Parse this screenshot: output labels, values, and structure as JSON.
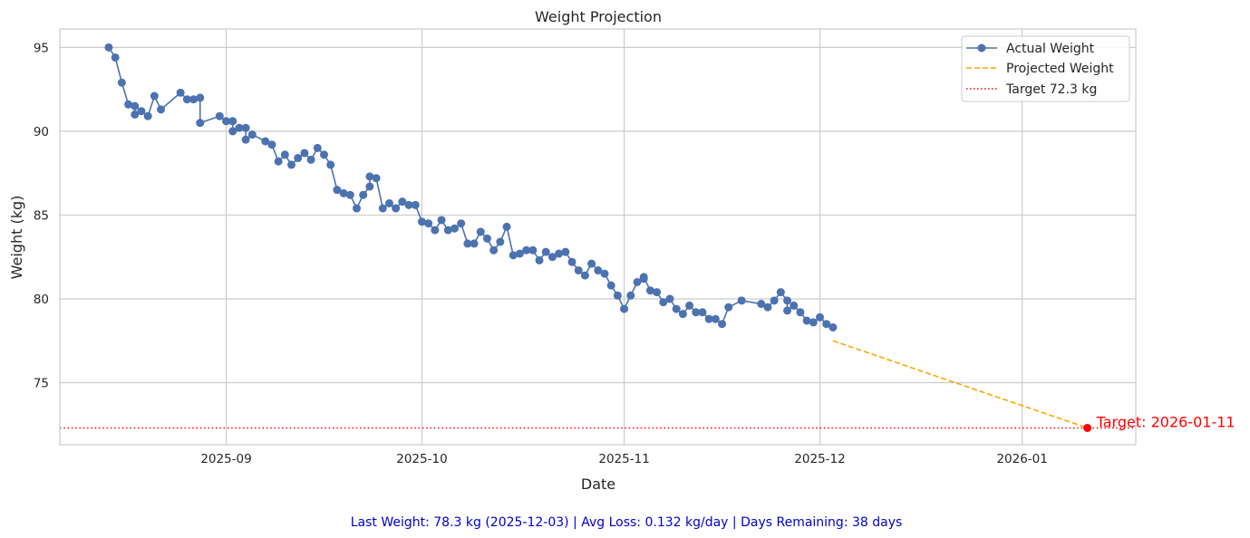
{
  "chart_data": {
    "type": "line",
    "title": "Weight Projection",
    "xlabel": "Date",
    "ylabel": "Weight (kg)",
    "xlim": [
      "2025-08-06T12:00",
      "2026-01-18T10:00"
    ],
    "ylim": [
      71.3,
      96.1
    ],
    "x_ticks": [
      "2025-09",
      "2025-10",
      "2025-11",
      "2025-12",
      "2026-01"
    ],
    "y_ticks": [
      75,
      80,
      85,
      90,
      95
    ],
    "grid": true,
    "legend_placement": "top-right",
    "series": [
      {
        "name": "Actual Weight",
        "style": "solid line with circle markers",
        "color": "#4c72b0",
        "points": [
          [
            "2025-08-14",
            95.0
          ],
          [
            "2025-08-15",
            94.4
          ],
          [
            "2025-08-16",
            92.9
          ],
          [
            "2025-08-17",
            91.6
          ],
          [
            "2025-08-18",
            91.5
          ],
          [
            "2025-08-18",
            91.0
          ],
          [
            "2025-08-19",
            91.2
          ],
          [
            "2025-08-20",
            90.9
          ],
          [
            "2025-08-21",
            92.1
          ],
          [
            "2025-08-22",
            91.3
          ],
          [
            "2025-08-25",
            92.3
          ],
          [
            "2025-08-26",
            91.9
          ],
          [
            "2025-08-27",
            91.9
          ],
          [
            "2025-08-28",
            92.0
          ],
          [
            "2025-08-28",
            90.5
          ],
          [
            "2025-08-31",
            90.9
          ],
          [
            "2025-09-01",
            90.6
          ],
          [
            "2025-09-02",
            90.6
          ],
          [
            "2025-09-02",
            90.0
          ],
          [
            "2025-09-03",
            90.2
          ],
          [
            "2025-09-04",
            90.2
          ],
          [
            "2025-09-04",
            89.5
          ],
          [
            "2025-09-05",
            89.8
          ],
          [
            "2025-09-07",
            89.4
          ],
          [
            "2025-09-08",
            89.2
          ],
          [
            "2025-09-09",
            88.2
          ],
          [
            "2025-09-10",
            88.6
          ],
          [
            "2025-09-11",
            88.0
          ],
          [
            "2025-09-12",
            88.4
          ],
          [
            "2025-09-13",
            88.7
          ],
          [
            "2025-09-14",
            88.3
          ],
          [
            "2025-09-15",
            89.0
          ],
          [
            "2025-09-16",
            88.6
          ],
          [
            "2025-09-17",
            88.0
          ],
          [
            "2025-09-18",
            86.5
          ],
          [
            "2025-09-19",
            86.3
          ],
          [
            "2025-09-20",
            86.2
          ],
          [
            "2025-09-21",
            85.4
          ],
          [
            "2025-09-22",
            86.2
          ],
          [
            "2025-09-23",
            86.7
          ],
          [
            "2025-09-23",
            87.3
          ],
          [
            "2025-09-24",
            87.2
          ],
          [
            "2025-09-25",
            85.4
          ],
          [
            "2025-09-26",
            85.7
          ],
          [
            "2025-09-27",
            85.4
          ],
          [
            "2025-09-28",
            85.8
          ],
          [
            "2025-09-29",
            85.6
          ],
          [
            "2025-09-30",
            85.6
          ],
          [
            "2025-10-01",
            84.6
          ],
          [
            "2025-10-02",
            84.5
          ],
          [
            "2025-10-03",
            84.1
          ],
          [
            "2025-10-04",
            84.7
          ],
          [
            "2025-10-05",
            84.1
          ],
          [
            "2025-10-06",
            84.2
          ],
          [
            "2025-10-07",
            84.5
          ],
          [
            "2025-10-08",
            83.3
          ],
          [
            "2025-10-09",
            83.3
          ],
          [
            "2025-10-10",
            84.0
          ],
          [
            "2025-10-11",
            83.6
          ],
          [
            "2025-10-12",
            82.9
          ],
          [
            "2025-10-13",
            83.4
          ],
          [
            "2025-10-14",
            84.3
          ],
          [
            "2025-10-15",
            82.6
          ],
          [
            "2025-10-16",
            82.7
          ],
          [
            "2025-10-17",
            82.9
          ],
          [
            "2025-10-18",
            82.9
          ],
          [
            "2025-10-19",
            82.3
          ],
          [
            "2025-10-20",
            82.8
          ],
          [
            "2025-10-21",
            82.5
          ],
          [
            "2025-10-22",
            82.7
          ],
          [
            "2025-10-23",
            82.8
          ],
          [
            "2025-10-24",
            82.2
          ],
          [
            "2025-10-25",
            81.7
          ],
          [
            "2025-10-26",
            81.4
          ],
          [
            "2025-10-27",
            82.1
          ],
          [
            "2025-10-28",
            81.7
          ],
          [
            "2025-10-29",
            81.5
          ],
          [
            "2025-10-30",
            80.8
          ],
          [
            "2025-10-31",
            80.2
          ],
          [
            "2025-11-01",
            79.4
          ],
          [
            "2025-11-02",
            80.2
          ],
          [
            "2025-11-03",
            81.0
          ],
          [
            "2025-11-04",
            81.2
          ],
          [
            "2025-11-04",
            81.3
          ],
          [
            "2025-11-05",
            80.5
          ],
          [
            "2025-11-06",
            80.4
          ],
          [
            "2025-11-07",
            79.8
          ],
          [
            "2025-11-08",
            80.0
          ],
          [
            "2025-11-09",
            79.4
          ],
          [
            "2025-11-10",
            79.1
          ],
          [
            "2025-11-11",
            79.6
          ],
          [
            "2025-11-12",
            79.2
          ],
          [
            "2025-11-13",
            79.2
          ],
          [
            "2025-11-14",
            78.8
          ],
          [
            "2025-11-15",
            78.8
          ],
          [
            "2025-11-16",
            78.5
          ],
          [
            "2025-11-17",
            79.5
          ],
          [
            "2025-11-19",
            79.9
          ],
          [
            "2025-11-22",
            79.7
          ],
          [
            "2025-11-23",
            79.5
          ],
          [
            "2025-11-24",
            79.9
          ],
          [
            "2025-11-25",
            80.4
          ],
          [
            "2025-11-26",
            79.9
          ],
          [
            "2025-11-26",
            79.3
          ],
          [
            "2025-11-27",
            79.6
          ],
          [
            "2025-11-28",
            79.2
          ],
          [
            "2025-11-29",
            78.7
          ],
          [
            "2025-11-30",
            78.6
          ],
          [
            "2025-12-01",
            78.9
          ],
          [
            "2025-12-02",
            78.5
          ],
          [
            "2025-12-03",
            78.3
          ]
        ]
      },
      {
        "name": "Projected Weight",
        "style": "dashed line",
        "color": "#ffa500",
        "points": [
          [
            "2025-12-03",
            77.5
          ],
          [
            "2026-01-11",
            72.3
          ]
        ]
      },
      {
        "name": "Target 72.3 kg",
        "style": "dotted horizontal line",
        "color": "#ff0000",
        "y": 72.3
      }
    ],
    "annotations": [
      {
        "text": "Target: 2026-01-11",
        "x": "2026-01-11",
        "y": 72.3,
        "color": "#ff0000",
        "marker": "red dot"
      }
    ]
  },
  "footer": {
    "text": "Last Weight: 78.3 kg (2025-12-03) | Avg Loss: 0.132 kg/day | Days Remaining: 38 days",
    "color": "#0000cc"
  }
}
